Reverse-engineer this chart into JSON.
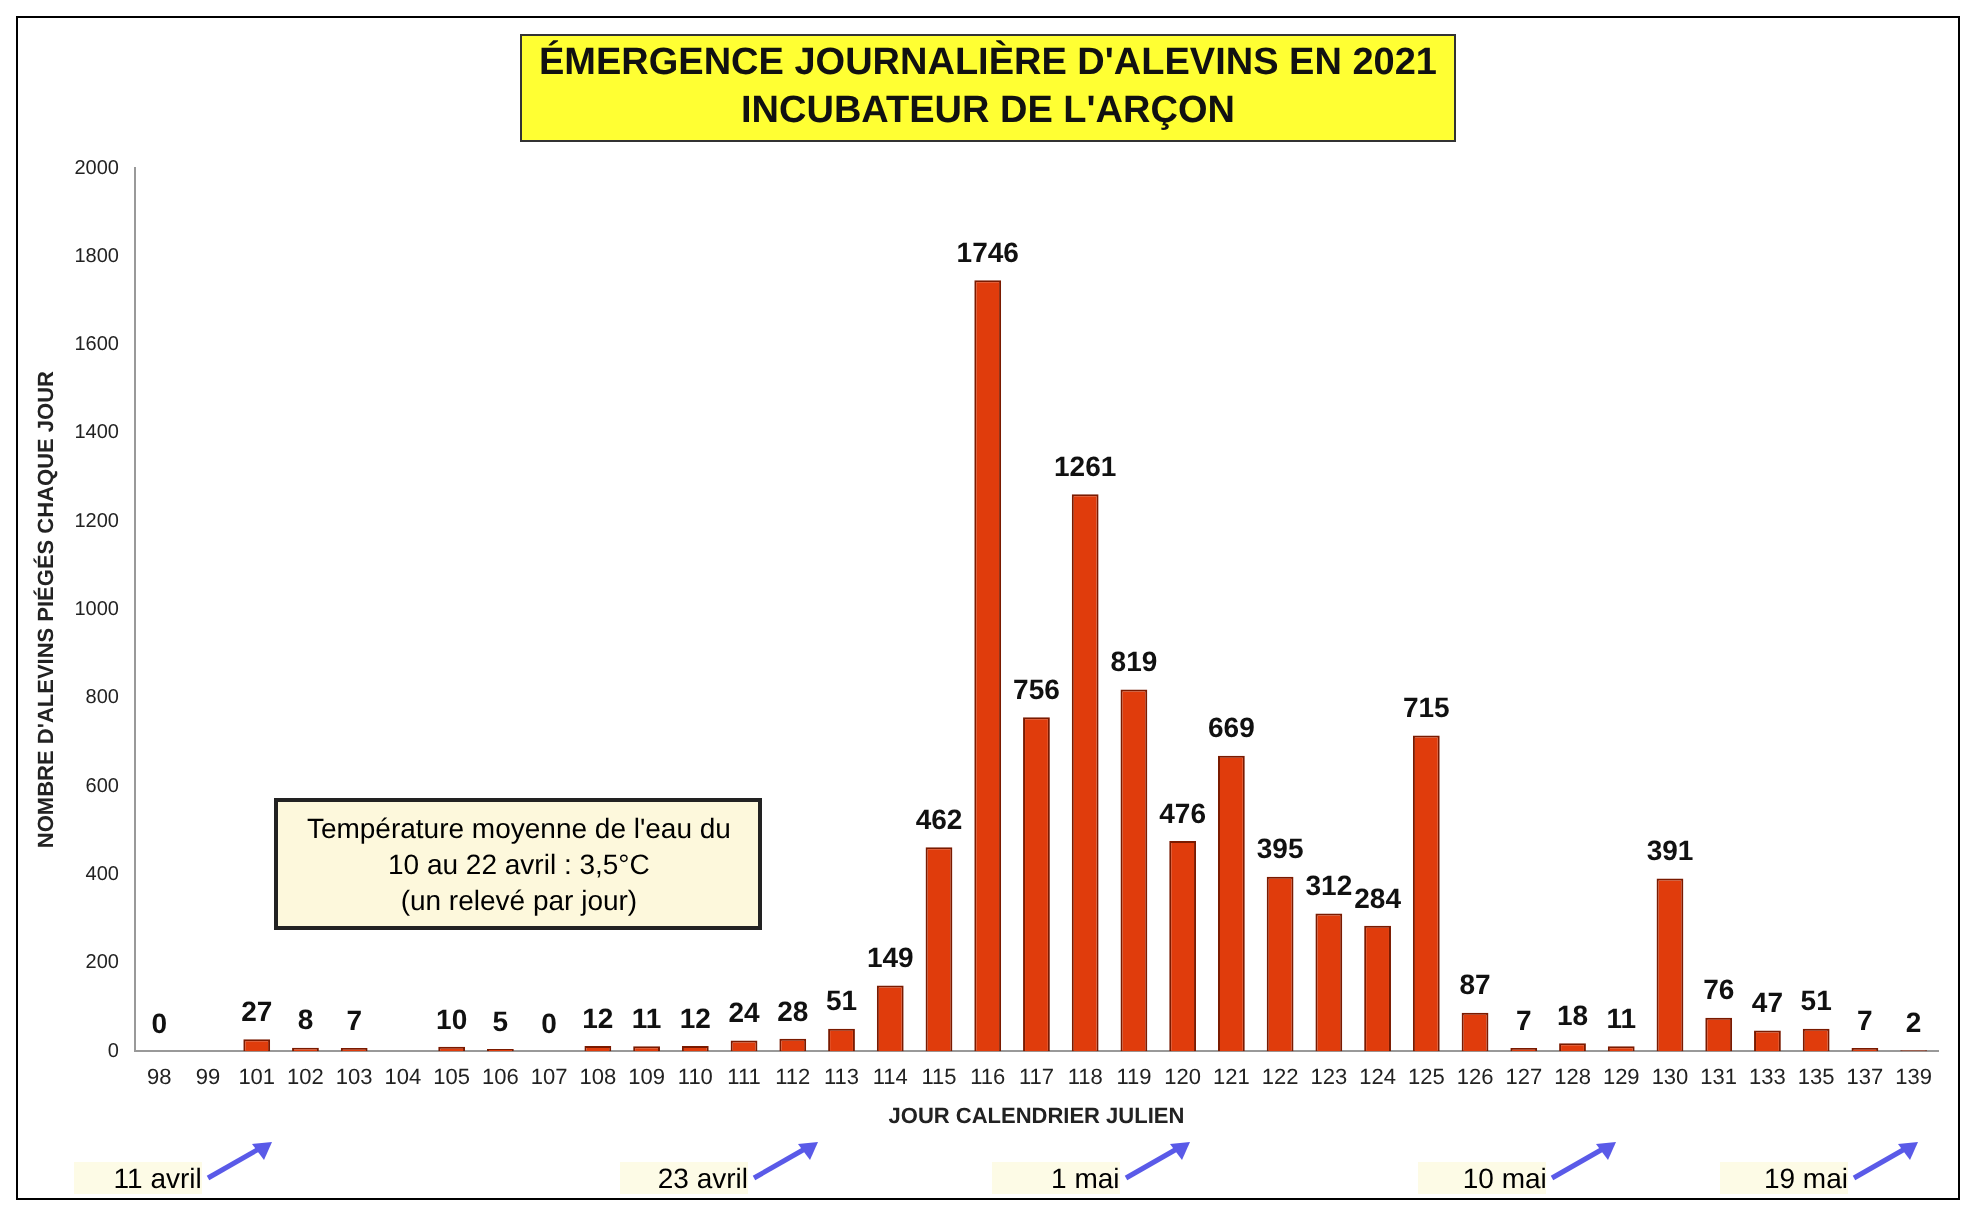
{
  "chart_data": {
    "type": "bar",
    "title": "ÉMERGENCE  JOURNALIÈRE D'ALEVINS EN 2021",
    "subtitle": "INCUBATEUR DE L'ARÇON",
    "xlabel": "JOUR CALENDRIER JULIEN",
    "ylabel": "NOMBRE D'ALEVINS PIÉGÉS CHAQUE JOUR",
    "categories": [
      "98",
      "99",
      "101",
      "102",
      "103",
      "104",
      "105",
      "106",
      "107",
      "108",
      "109",
      "110",
      "111",
      "112",
      "113",
      "114",
      "115",
      "116",
      "117",
      "118",
      "119",
      "120",
      "121",
      "122",
      "123",
      "124",
      "125",
      "126",
      "127",
      "128",
      "129",
      "130",
      "131",
      "133",
      "135",
      "137",
      "139"
    ],
    "values": [
      0,
      null,
      27,
      8,
      7,
      null,
      10,
      5,
      0,
      12,
      11,
      12,
      24,
      28,
      51,
      149,
      462,
      1746,
      756,
      1261,
      819,
      476,
      669,
      395,
      312,
      284,
      715,
      87,
      7,
      18,
      11,
      391,
      76,
      47,
      51,
      7,
      2
    ],
    "color": "#e03c0c",
    "data_labels": true,
    "ylim": [
      0,
      2000
    ],
    "yticks": [
      0,
      200,
      400,
      600,
      800,
      1000,
      1200,
      1400,
      1600,
      1800,
      2000
    ],
    "grid": false,
    "annotations": [
      "Température moyenne de l'eau du\n10 au 22 avril : 3,5°C\n(un relevé par jour)",
      "11 avril",
      "23 avril",
      "1 mai",
      "10 mai",
      "19 mai"
    ]
  }
}
